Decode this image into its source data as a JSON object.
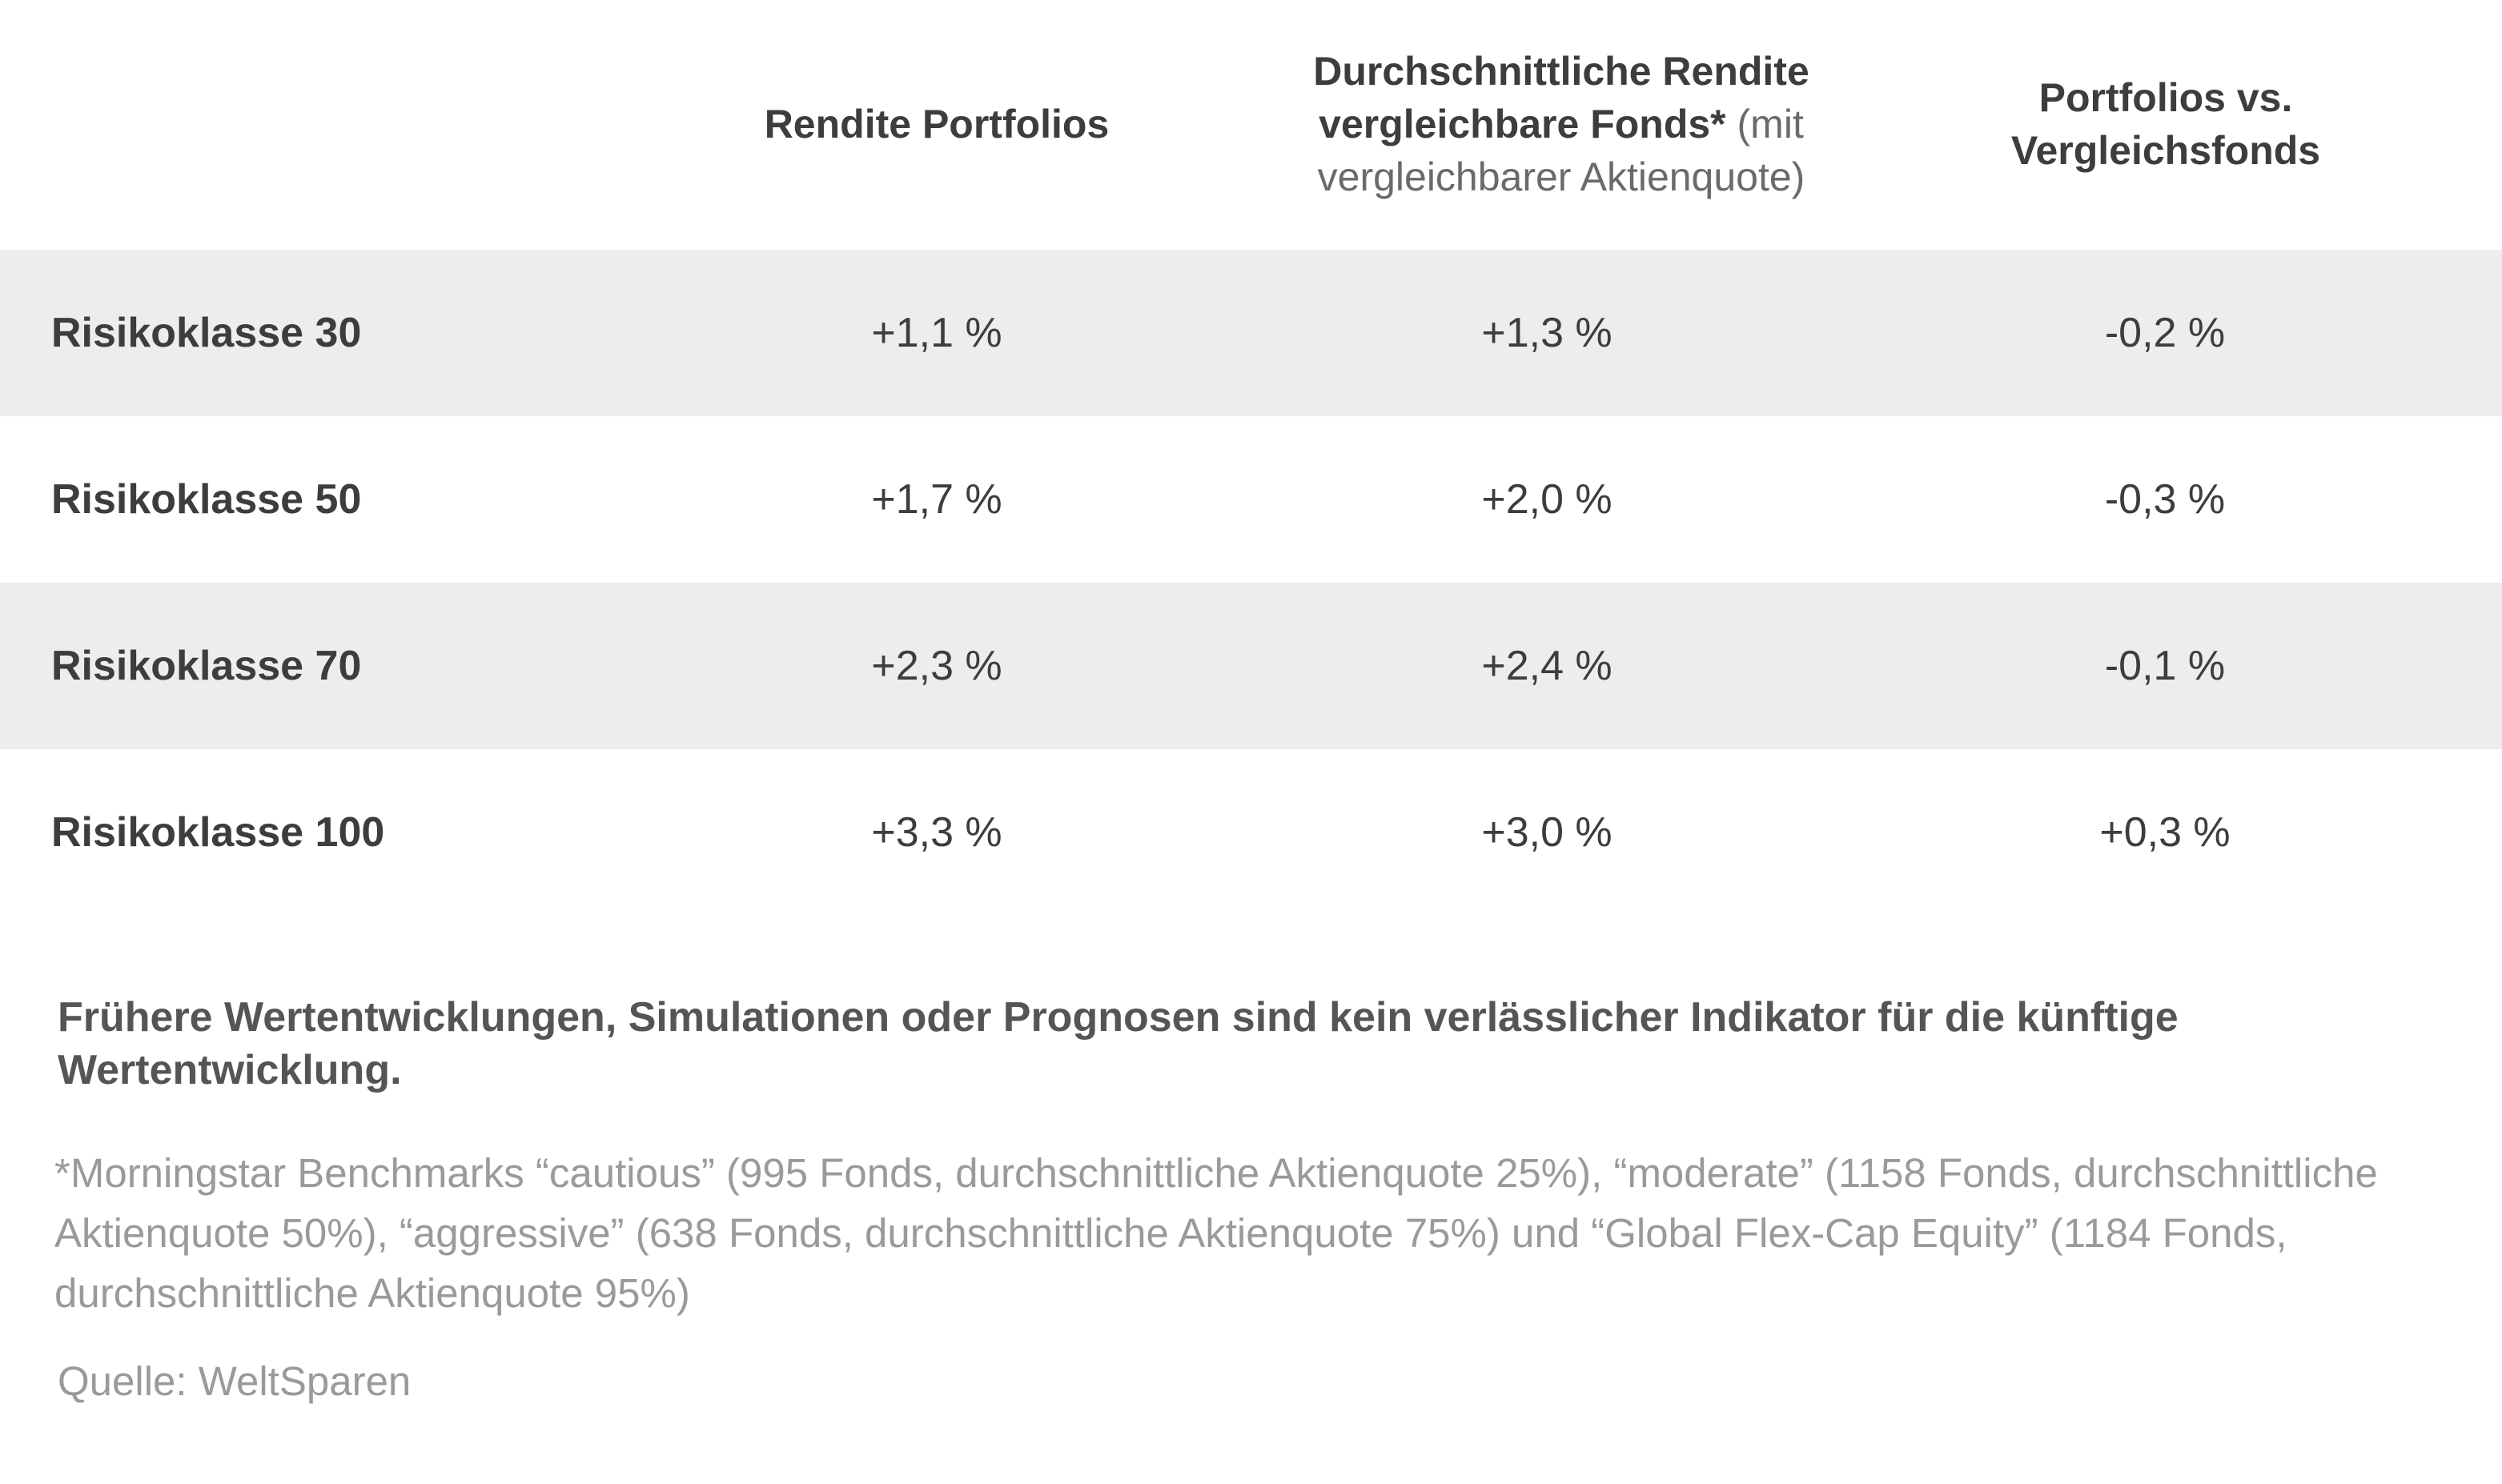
{
  "chart_data": {
    "type": "table",
    "columns": [
      {
        "label_bold": "Rendite Portfolios",
        "label_light": ""
      },
      {
        "label_bold": "Durchschnittliche Rendite vergleichbare Fonds*",
        "label_light": " (mit vergleichbarer Aktienquote)"
      },
      {
        "label_bold": "Portfolios vs. Vergleichsfonds",
        "label_light": ""
      }
    ],
    "rows": [
      {
        "label": "Risikoklasse 30",
        "values": [
          "+1,1 %",
          "+1,3 %",
          "-0,2 %"
        ]
      },
      {
        "label": "Risikoklasse 50",
        "values": [
          "+1,7 %",
          "+2,0 %",
          "-0,3 %"
        ]
      },
      {
        "label": "Risikoklasse 70",
        "values": [
          "+2,3 %",
          "+2,4 %",
          "-0,1 %"
        ]
      },
      {
        "label": "Risikoklasse 100",
        "values": [
          "+3,3 %",
          "+3,0 %",
          "+0,3 %"
        ]
      }
    ],
    "numeric_values": [
      [
        1.1,
        1.3,
        -0.2
      ],
      [
        1.7,
        2.0,
        -0.3
      ],
      [
        2.3,
        2.4,
        -0.1
      ],
      [
        3.3,
        3.0,
        0.3
      ]
    ],
    "row_shading": [
      "#ededed",
      "#ffffff",
      "#ededed",
      "#ffffff"
    ]
  },
  "notes": {
    "disclaimer": "Frühere Wertentwicklungen, Simulationen oder Prognosen sind kein verlässlicher Indikator für die künftige Wertentwicklung.",
    "footnote": "*Morningstar Benchmarks “cautious” (995 Fonds, durchschnittliche Aktienquote 25%), “moderate” (1158 Fonds, durchschnittliche Aktienquote 50%), “aggressive” (638 Fonds, durchschnittliche Aktienquote 75%) und “Global Flex-Cap Equity” (1184 Fonds, durchschnittliche Aktienquote 95%)",
    "source": "Quelle: WeltSparen"
  }
}
